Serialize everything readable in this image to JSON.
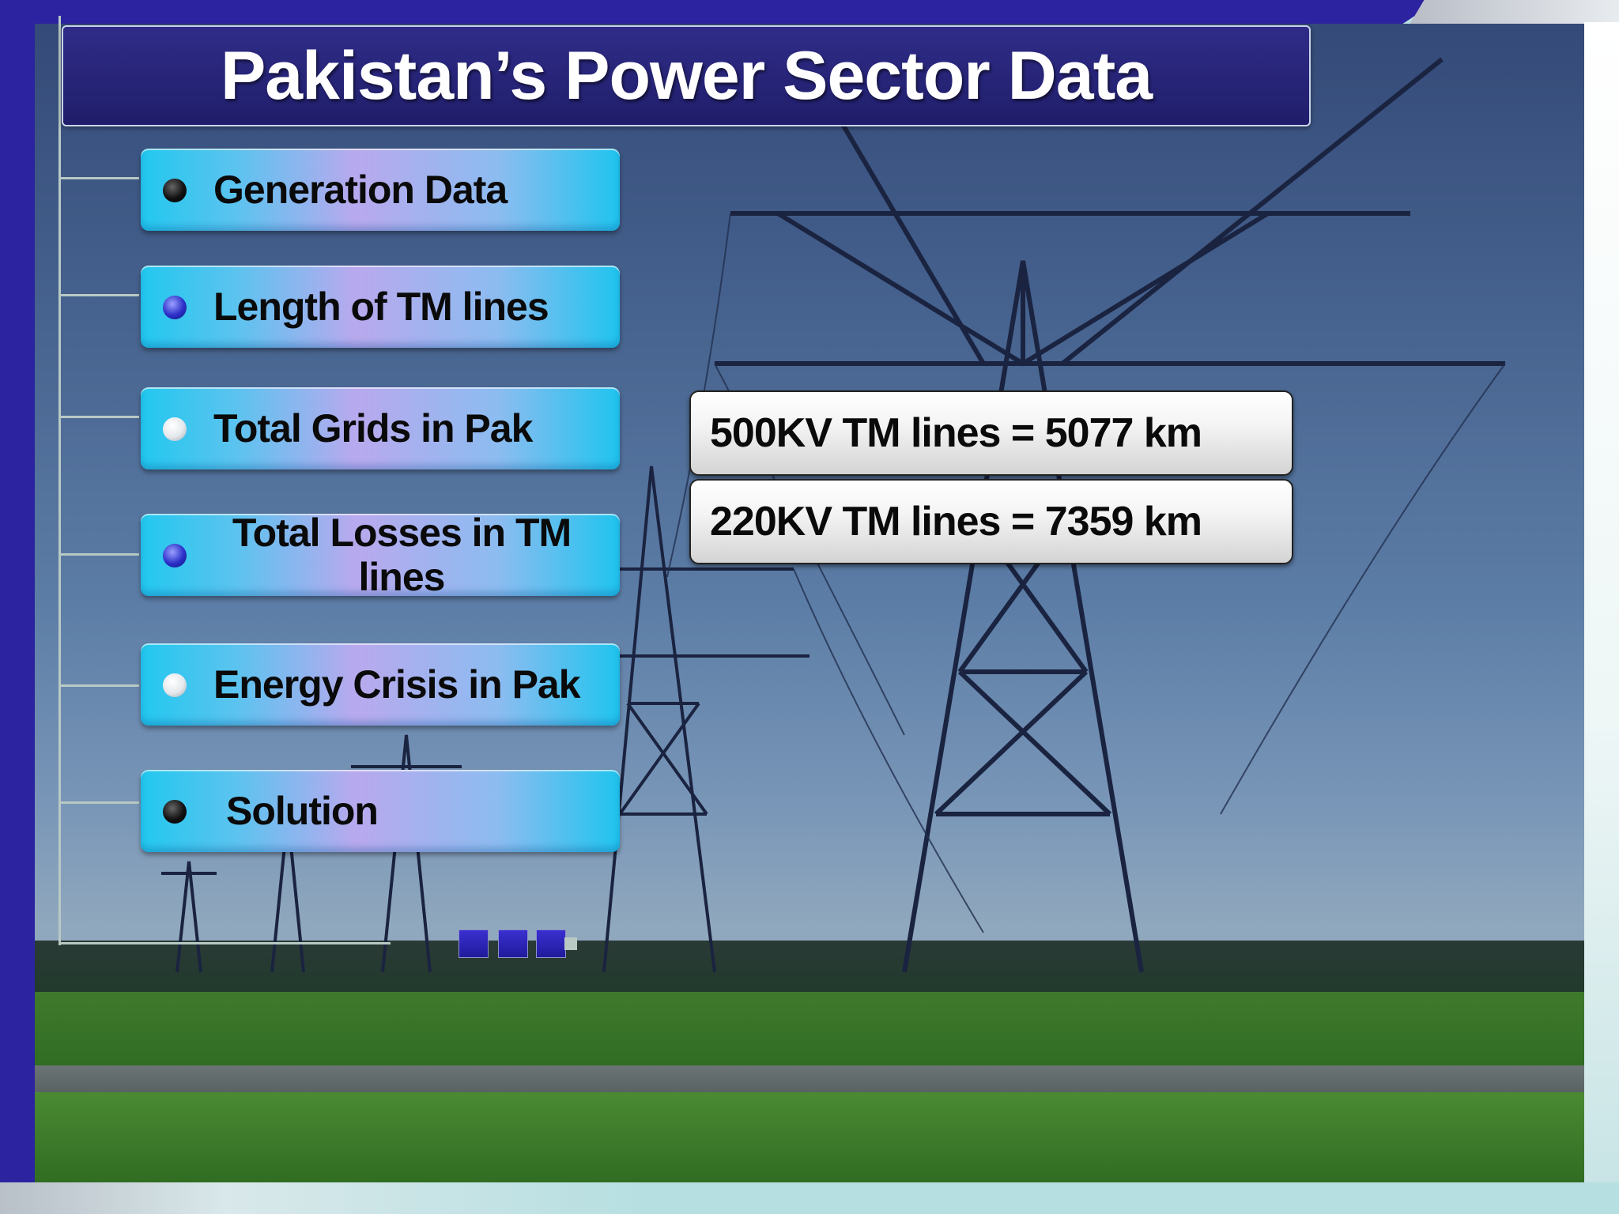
{
  "title": "Pakistan’s Power Sector Data",
  "menu": [
    {
      "label": "Generation Data",
      "bullet": "black"
    },
    {
      "label": "Length of TM lines",
      "bullet": "blue"
    },
    {
      "label": "Total Grids in Pak",
      "bullet": "white"
    },
    {
      "label": "Total Losses in TM lines",
      "bullet": "blue"
    },
    {
      "label": "Energy Crisis in Pak",
      "bullet": "white"
    },
    {
      "label": "Solution",
      "bullet": "black"
    }
  ],
  "info": [
    {
      "label": "500KV TM lines = 5077 km"
    },
    {
      "label": "220KV TM lines = 7359 km"
    }
  ],
  "colors": {
    "frame": "#2b23a0",
    "title_bar": "#201e6a",
    "button_accent": "#22c8ef"
  }
}
